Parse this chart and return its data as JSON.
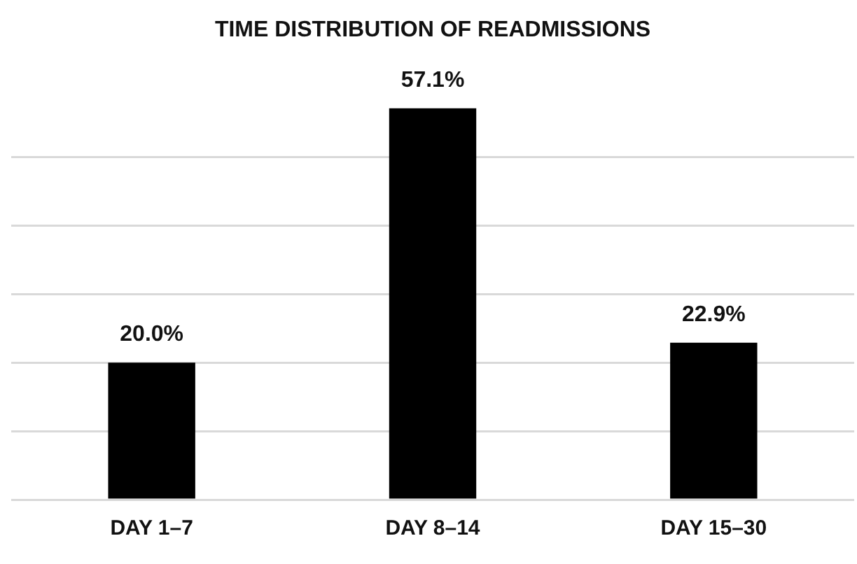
{
  "chart_data": {
    "type": "bar",
    "title": "TIME DISTRIBUTION OF READMISSIONS",
    "categories": [
      "DAY 1–7",
      "DAY 8–14",
      "DAY 15–30"
    ],
    "values": [
      20.0,
      57.1,
      22.9
    ],
    "value_labels": [
      "20.0%",
      "57.1%",
      "22.9%"
    ],
    "color": "#000000",
    "yticks": [
      {
        "value": 0,
        "label": null
      },
      {
        "value": 10,
        "label": null
      },
      {
        "value": 20,
        "label": null
      },
      {
        "value": 30,
        "label": null
      },
      {
        "value": 40,
        "label": null
      },
      {
        "value": 50,
        "label": null
      }
    ],
    "grid": "y",
    "tick_labels": "x"
  }
}
